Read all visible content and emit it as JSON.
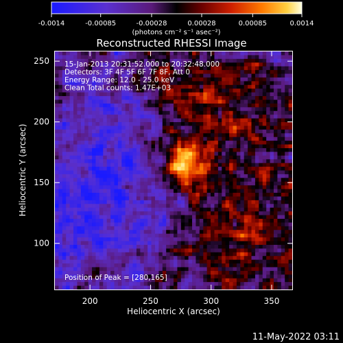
{
  "chart_data": {
    "type": "heatmap",
    "title": "Reconstructed RHESSI Image",
    "xlabel": "Heliocentric X (arcsec)",
    "ylabel": "Heliocentric Y (arcsec)",
    "xlim": [
      171,
      367
    ],
    "ylim": [
      62,
      258
    ],
    "x_ticks": [
      200,
      250,
      300,
      350
    ],
    "y_ticks": [
      100,
      150,
      200,
      250
    ],
    "colorbar": {
      "range": [
        -0.0014,
        0.0014
      ],
      "tick_values": [
        -0.0014,
        -0.00085,
        -0.00028,
        0.00028,
        0.00085,
        0.0014
      ],
      "tick_labels": [
        "-0.0014",
        "-0.00085",
        "-0.00028",
        "0.00028",
        "0.00085",
        "0.0014"
      ],
      "unit_label": "(photons cm⁻² s⁻¹ asec⁻²)"
    },
    "annotations": [
      "15-Jan-2013 20:31:52.000 to 20:32:48.000",
      "Detectors: 3F 4F 5F 6F 7F 8F, Att 0",
      "Energy Range: 12.0 - 25.0 keV",
      "Clean     Total counts: 1.47E+03"
    ],
    "peak_label": "Position of Peak = [280,165]",
    "peak": {
      "x": 280,
      "y": 165
    },
    "grid": false
  },
  "footer": {
    "timestamp": "11-May-2022 03:11"
  }
}
